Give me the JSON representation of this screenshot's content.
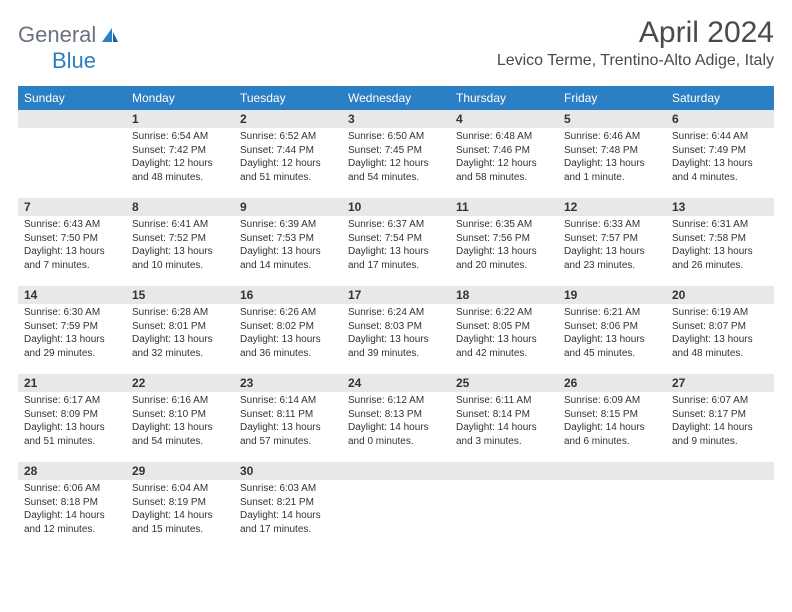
{
  "header": {
    "logo_part1": "General",
    "logo_part2": "Blue",
    "month_title": "April 2024",
    "location": "Levico Terme, Trentino-Alto Adige, Italy"
  },
  "colors": {
    "header_bar": "#2b7fc4",
    "daynum_bg": "#e7e8ea",
    "logo_gray": "#6b7280",
    "logo_blue": "#2b7fc4",
    "text": "#333333"
  },
  "day_names": [
    "Sunday",
    "Monday",
    "Tuesday",
    "Wednesday",
    "Thursday",
    "Friday",
    "Saturday"
  ],
  "weeks": [
    [
      null,
      {
        "n": "1",
        "sunrise": "Sunrise: 6:54 AM",
        "sunset": "Sunset: 7:42 PM",
        "daylight": "Daylight: 12 hours and 48 minutes."
      },
      {
        "n": "2",
        "sunrise": "Sunrise: 6:52 AM",
        "sunset": "Sunset: 7:44 PM",
        "daylight": "Daylight: 12 hours and 51 minutes."
      },
      {
        "n": "3",
        "sunrise": "Sunrise: 6:50 AM",
        "sunset": "Sunset: 7:45 PM",
        "daylight": "Daylight: 12 hours and 54 minutes."
      },
      {
        "n": "4",
        "sunrise": "Sunrise: 6:48 AM",
        "sunset": "Sunset: 7:46 PM",
        "daylight": "Daylight: 12 hours and 58 minutes."
      },
      {
        "n": "5",
        "sunrise": "Sunrise: 6:46 AM",
        "sunset": "Sunset: 7:48 PM",
        "daylight": "Daylight: 13 hours and 1 minute."
      },
      {
        "n": "6",
        "sunrise": "Sunrise: 6:44 AM",
        "sunset": "Sunset: 7:49 PM",
        "daylight": "Daylight: 13 hours and 4 minutes."
      }
    ],
    [
      {
        "n": "7",
        "sunrise": "Sunrise: 6:43 AM",
        "sunset": "Sunset: 7:50 PM",
        "daylight": "Daylight: 13 hours and 7 minutes."
      },
      {
        "n": "8",
        "sunrise": "Sunrise: 6:41 AM",
        "sunset": "Sunset: 7:52 PM",
        "daylight": "Daylight: 13 hours and 10 minutes."
      },
      {
        "n": "9",
        "sunrise": "Sunrise: 6:39 AM",
        "sunset": "Sunset: 7:53 PM",
        "daylight": "Daylight: 13 hours and 14 minutes."
      },
      {
        "n": "10",
        "sunrise": "Sunrise: 6:37 AM",
        "sunset": "Sunset: 7:54 PM",
        "daylight": "Daylight: 13 hours and 17 minutes."
      },
      {
        "n": "11",
        "sunrise": "Sunrise: 6:35 AM",
        "sunset": "Sunset: 7:56 PM",
        "daylight": "Daylight: 13 hours and 20 minutes."
      },
      {
        "n": "12",
        "sunrise": "Sunrise: 6:33 AM",
        "sunset": "Sunset: 7:57 PM",
        "daylight": "Daylight: 13 hours and 23 minutes."
      },
      {
        "n": "13",
        "sunrise": "Sunrise: 6:31 AM",
        "sunset": "Sunset: 7:58 PM",
        "daylight": "Daylight: 13 hours and 26 minutes."
      }
    ],
    [
      {
        "n": "14",
        "sunrise": "Sunrise: 6:30 AM",
        "sunset": "Sunset: 7:59 PM",
        "daylight": "Daylight: 13 hours and 29 minutes."
      },
      {
        "n": "15",
        "sunrise": "Sunrise: 6:28 AM",
        "sunset": "Sunset: 8:01 PM",
        "daylight": "Daylight: 13 hours and 32 minutes."
      },
      {
        "n": "16",
        "sunrise": "Sunrise: 6:26 AM",
        "sunset": "Sunset: 8:02 PM",
        "daylight": "Daylight: 13 hours and 36 minutes."
      },
      {
        "n": "17",
        "sunrise": "Sunrise: 6:24 AM",
        "sunset": "Sunset: 8:03 PM",
        "daylight": "Daylight: 13 hours and 39 minutes."
      },
      {
        "n": "18",
        "sunrise": "Sunrise: 6:22 AM",
        "sunset": "Sunset: 8:05 PM",
        "daylight": "Daylight: 13 hours and 42 minutes."
      },
      {
        "n": "19",
        "sunrise": "Sunrise: 6:21 AM",
        "sunset": "Sunset: 8:06 PM",
        "daylight": "Daylight: 13 hours and 45 minutes."
      },
      {
        "n": "20",
        "sunrise": "Sunrise: 6:19 AM",
        "sunset": "Sunset: 8:07 PM",
        "daylight": "Daylight: 13 hours and 48 minutes."
      }
    ],
    [
      {
        "n": "21",
        "sunrise": "Sunrise: 6:17 AM",
        "sunset": "Sunset: 8:09 PM",
        "daylight": "Daylight: 13 hours and 51 minutes."
      },
      {
        "n": "22",
        "sunrise": "Sunrise: 6:16 AM",
        "sunset": "Sunset: 8:10 PM",
        "daylight": "Daylight: 13 hours and 54 minutes."
      },
      {
        "n": "23",
        "sunrise": "Sunrise: 6:14 AM",
        "sunset": "Sunset: 8:11 PM",
        "daylight": "Daylight: 13 hours and 57 minutes."
      },
      {
        "n": "24",
        "sunrise": "Sunrise: 6:12 AM",
        "sunset": "Sunset: 8:13 PM",
        "daylight": "Daylight: 14 hours and 0 minutes."
      },
      {
        "n": "25",
        "sunrise": "Sunrise: 6:11 AM",
        "sunset": "Sunset: 8:14 PM",
        "daylight": "Daylight: 14 hours and 3 minutes."
      },
      {
        "n": "26",
        "sunrise": "Sunrise: 6:09 AM",
        "sunset": "Sunset: 8:15 PM",
        "daylight": "Daylight: 14 hours and 6 minutes."
      },
      {
        "n": "27",
        "sunrise": "Sunrise: 6:07 AM",
        "sunset": "Sunset: 8:17 PM",
        "daylight": "Daylight: 14 hours and 9 minutes."
      }
    ],
    [
      {
        "n": "28",
        "sunrise": "Sunrise: 6:06 AM",
        "sunset": "Sunset: 8:18 PM",
        "daylight": "Daylight: 14 hours and 12 minutes."
      },
      {
        "n": "29",
        "sunrise": "Sunrise: 6:04 AM",
        "sunset": "Sunset: 8:19 PM",
        "daylight": "Daylight: 14 hours and 15 minutes."
      },
      {
        "n": "30",
        "sunrise": "Sunrise: 6:03 AM",
        "sunset": "Sunset: 8:21 PM",
        "daylight": "Daylight: 14 hours and 17 minutes."
      },
      null,
      null,
      null,
      null
    ]
  ]
}
